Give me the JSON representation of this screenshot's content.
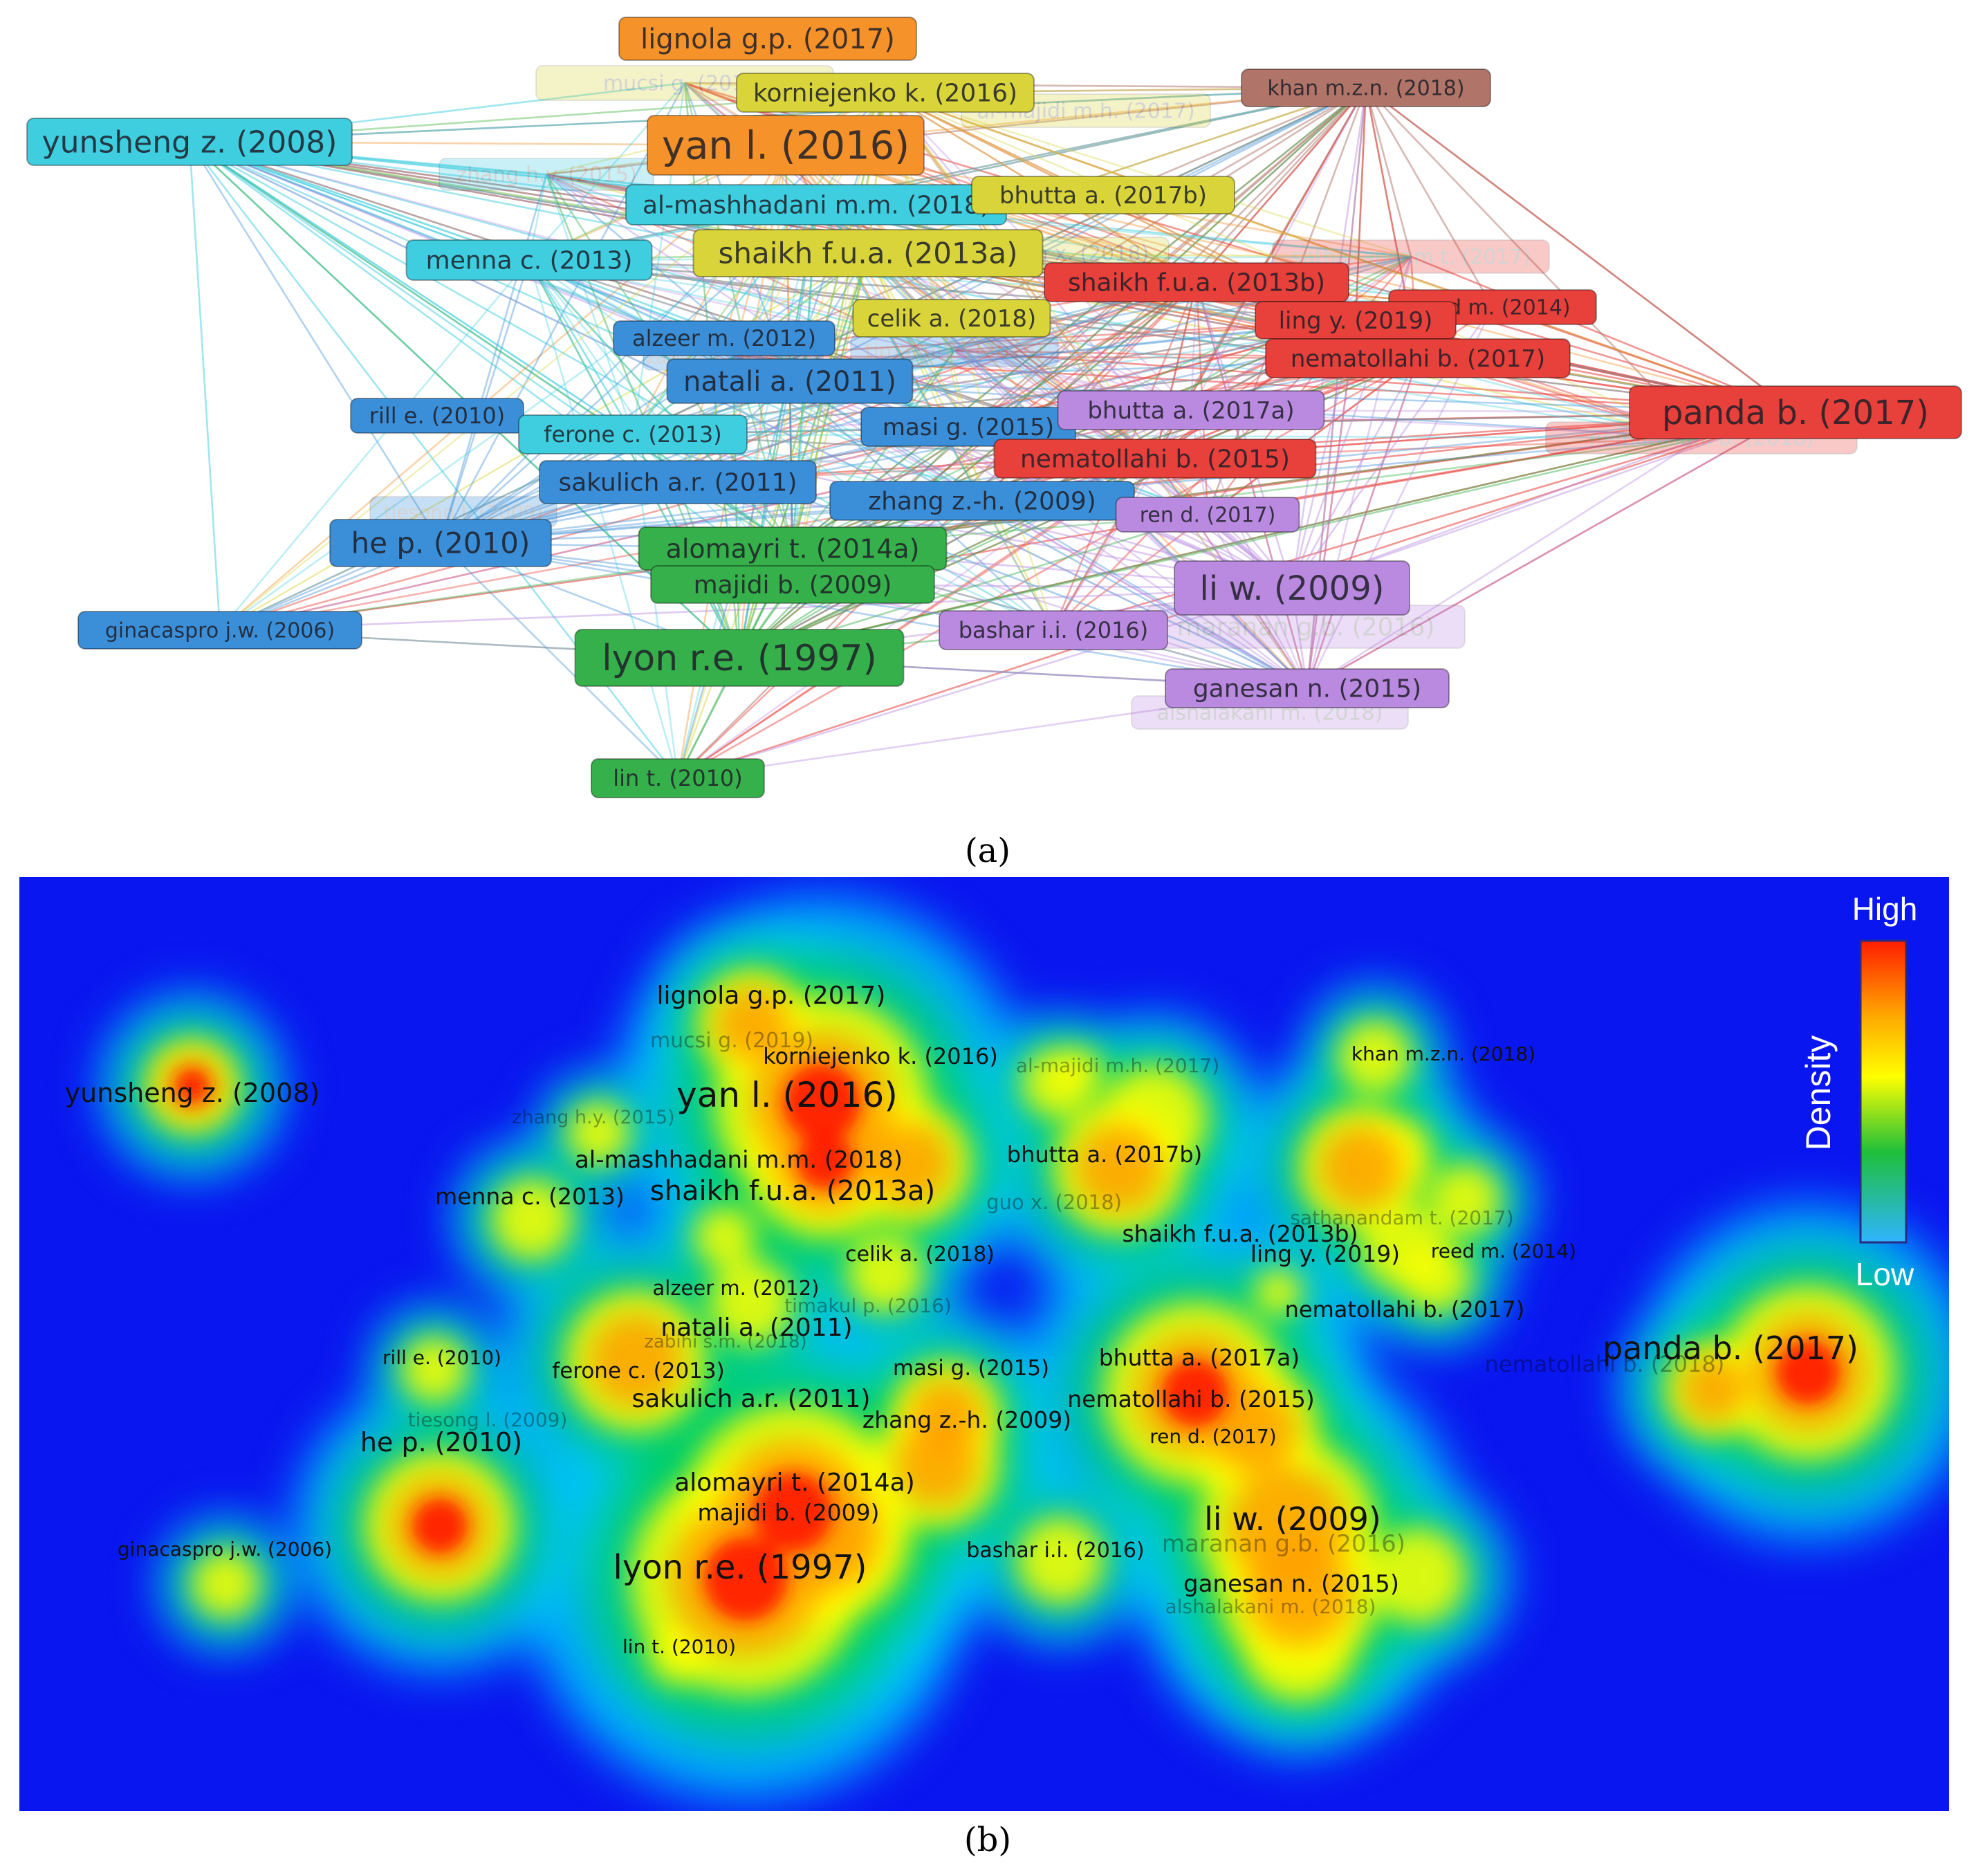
{
  "captions": {
    "a": "(a)",
    "b": "(b)"
  },
  "colors": {
    "cyan": "#3fcde0",
    "blue": "#3b8fd8",
    "green": "#36b04a",
    "yellow": "#d8d43a",
    "orange": "#f5922a",
    "red": "#e8403a",
    "purple": "#b98ae0",
    "brown": "#b07468",
    "density_background": "#0a16f0"
  },
  "legend": {
    "high": "High",
    "density": "Density",
    "low": "Low"
  },
  "nodes": [
    {
      "label": "lignola g.p. (2017)",
      "cluster": "orange"
    },
    {
      "label": "mucsi g. (2019)",
      "cluster": "yellow",
      "faded": true
    },
    {
      "label": "korniejenko k. (2016)",
      "cluster": "yellow"
    },
    {
      "label": "al-majidi m.h. (2017)",
      "cluster": "yellow",
      "faded": true
    },
    {
      "label": "khan m.z.n. (2018)",
      "cluster": "brown"
    },
    {
      "label": "yunsheng z. (2008)",
      "cluster": "cyan"
    },
    {
      "label": "yan l. (2016)",
      "cluster": "orange"
    },
    {
      "label": "zhang h.y. (2015)",
      "cluster": "cyan",
      "faded": true
    },
    {
      "label": "al-mashhadani m.m. (2018)",
      "cluster": "cyan"
    },
    {
      "label": "bhutta a. (2017b)",
      "cluster": "yellow"
    },
    {
      "label": "menna c. (2013)",
      "cluster": "cyan"
    },
    {
      "label": "shaikh f.u.a. (2013a)",
      "cluster": "yellow"
    },
    {
      "label": "guo x. (2018)",
      "cluster": "yellow",
      "faded": true
    },
    {
      "label": "sathanandam t. (2017)",
      "cluster": "red",
      "faded": true
    },
    {
      "label": "shaikh f.u.a. (2013b)",
      "cluster": "red"
    },
    {
      "label": "celik a. (2018)",
      "cluster": "yellow"
    },
    {
      "label": "reed m. (2014)",
      "cluster": "red"
    },
    {
      "label": "ling y. (2019)",
      "cluster": "red"
    },
    {
      "label": "alzeer m. (2012)",
      "cluster": "blue"
    },
    {
      "label": "timakul p. (2016)",
      "cluster": "blue",
      "faded": true
    },
    {
      "label": "nematollahi b. (2017)",
      "cluster": "red"
    },
    {
      "label": "natali a. (2011)",
      "cluster": "blue"
    },
    {
      "label": "panda b. (2017)",
      "cluster": "red"
    },
    {
      "label": "nematollahi b. (2018)",
      "cluster": "red",
      "faded": true
    },
    {
      "label": "rill e. (2010)",
      "cluster": "blue"
    },
    {
      "label": "ferone c. (2013)",
      "cluster": "cyan"
    },
    {
      "label": "masi g. (2015)",
      "cluster": "blue"
    },
    {
      "label": "bhutta a. (2017a)",
      "cluster": "purple"
    },
    {
      "label": "nematollahi b. (2015)",
      "cluster": "red"
    },
    {
      "label": "sakulich a.r. (2011)",
      "cluster": "blue"
    },
    {
      "label": "tiesong l. (2009)",
      "cluster": "blue",
      "faded": true
    },
    {
      "label": "zhang z.-h. (2009)",
      "cluster": "blue"
    },
    {
      "label": "ren d. (2017)",
      "cluster": "purple"
    },
    {
      "label": "he p. (2010)",
      "cluster": "blue"
    },
    {
      "label": "alomayri t. (2014a)",
      "cluster": "green"
    },
    {
      "label": "majidi b. (2009)",
      "cluster": "green"
    },
    {
      "label": "li w. (2009)",
      "cluster": "purple"
    },
    {
      "label": "ginacaspro j.w. (2006)",
      "cluster": "blue"
    },
    {
      "label": "bashar i.i. (2016)",
      "cluster": "purple"
    },
    {
      "label": "maranan g.b. (2016)",
      "cluster": "purple",
      "faded": true
    },
    {
      "label": "lyon r.e. (1997)",
      "cluster": "green"
    },
    {
      "label": "ganesan n. (2015)",
      "cluster": "purple"
    },
    {
      "label": "alshalakani m. (2018)",
      "cluster": "purple",
      "faded": true
    },
    {
      "label": "lin t. (2010)",
      "cluster": "green"
    },
    {
      "label": "zabihi s.m. (2018)",
      "cluster": "blue",
      "faded": true
    }
  ]
}
